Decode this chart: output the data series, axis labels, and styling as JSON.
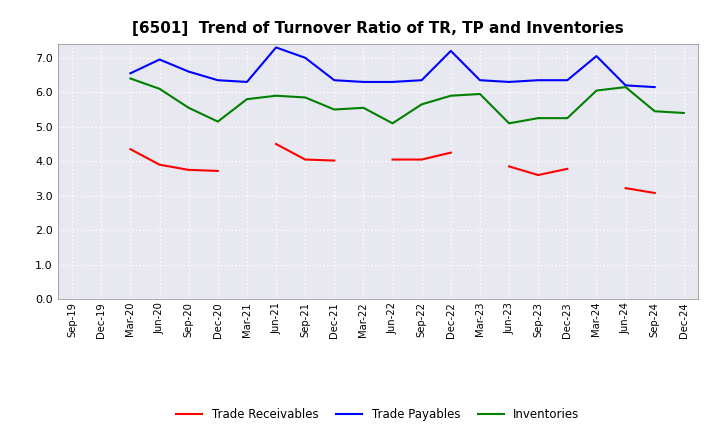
{
  "title": "[6501]  Trend of Turnover Ratio of TR, TP and Inventories",
  "x_labels": [
    "Sep-19",
    "Dec-19",
    "Mar-20",
    "Jun-20",
    "Sep-20",
    "Dec-20",
    "Mar-21",
    "Jun-21",
    "Sep-21",
    "Dec-21",
    "Mar-22",
    "Jun-22",
    "Sep-22",
    "Dec-22",
    "Mar-23",
    "Jun-23",
    "Sep-23",
    "Dec-23",
    "Mar-24",
    "Jun-24",
    "Sep-24",
    "Dec-24"
  ],
  "trade_receivables": [
    null,
    null,
    4.35,
    3.9,
    3.75,
    3.72,
    null,
    4.5,
    4.05,
    4.02,
    null,
    4.05,
    4.05,
    4.25,
    null,
    3.85,
    3.6,
    3.78,
    null,
    3.22,
    3.08,
    null
  ],
  "trade_payables": [
    null,
    null,
    6.55,
    6.95,
    6.6,
    6.35,
    6.3,
    7.3,
    7.0,
    6.35,
    6.3,
    6.3,
    6.35,
    7.2,
    6.35,
    6.3,
    6.35,
    6.35,
    7.05,
    6.2,
    6.15,
    null
  ],
  "inventories": [
    null,
    null,
    6.4,
    6.1,
    5.55,
    5.15,
    5.8,
    5.9,
    5.85,
    5.5,
    5.55,
    5.1,
    5.65,
    5.9,
    5.95,
    5.1,
    5.25,
    5.25,
    6.05,
    6.15,
    5.45,
    5.4
  ],
  "tr_color": "#ff0000",
  "tp_color": "#0000ff",
  "inv_color": "#008000",
  "ylim": [
    0.0,
    7.4
  ],
  "yticks": [
    0.0,
    1.0,
    2.0,
    3.0,
    4.0,
    5.0,
    6.0,
    7.0
  ],
  "line_width": 1.5,
  "bg_color": "#ffffff",
  "plot_bg_color": "#e8e8f0",
  "grid_color": "#ffffff",
  "title_fontsize": 11
}
